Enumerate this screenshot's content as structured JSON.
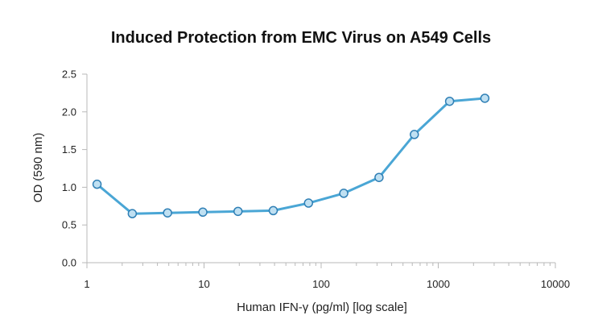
{
  "chart_data": {
    "type": "line",
    "title": "Induced Protection from EMC Virus on A549 Cells",
    "xlabel": "Human IFN-γ (pg/ml) [log scale]",
    "ylabel": "OD (590 nm)",
    "x_scale": "log",
    "xlim": [
      1,
      10000
    ],
    "ylim": [
      0,
      2.5
    ],
    "x_ticks": [
      {
        "value": 1,
        "label": "1"
      },
      {
        "value": 10,
        "label": "10"
      },
      {
        "value": 100,
        "label": "100"
      },
      {
        "value": 1000,
        "label": "1000"
      },
      {
        "value": 10000,
        "label": "10000"
      }
    ],
    "y_ticks": [
      {
        "value": 0,
        "label": "0.0"
      },
      {
        "value": 0.5,
        "label": "0.5"
      },
      {
        "value": 1,
        "label": "1.0"
      },
      {
        "value": 1.5,
        "label": "1.5"
      },
      {
        "value": 2,
        "label": "2.0"
      },
      {
        "value": 2.5,
        "label": "2.5"
      }
    ],
    "grid": false,
    "series": [
      {
        "color": "#4aa6d5",
        "marker_fill": "#bfe0f2",
        "marker_stroke": "#2f7fb5",
        "x": [
          1.22,
          2.44,
          4.88,
          9.77,
          19.5,
          39,
          78,
          156,
          312,
          625,
          1250,
          2500
        ],
        "y": [
          1.04,
          0.65,
          0.66,
          0.67,
          0.68,
          0.69,
          0.79,
          0.92,
          1.13,
          1.7,
          2.14,
          2.18
        ]
      }
    ]
  }
}
